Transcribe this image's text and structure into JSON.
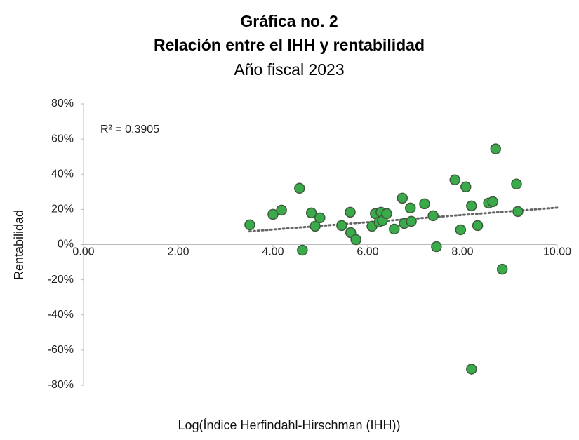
{
  "chart_data": {
    "type": "scatter",
    "title": "Gráfica no. 2",
    "title_line2": "Relación entre el IHH y rentabilidad",
    "subtitle": "Año fiscal 2023",
    "x_label": "Log(Índice Herfindahl-Hirschman (IHH))",
    "y_label": "Rentabilidad",
    "annotation": "R² = 0.3905",
    "color": "#3aaa4a",
    "x": [
      3.51,
      4.0,
      4.18,
      4.56,
      4.62,
      4.81,
      4.89,
      4.99,
      5.45,
      5.63,
      5.64,
      5.75,
      6.09,
      6.16,
      6.24,
      6.28,
      6.31,
      6.4,
      6.56,
      6.73,
      6.77,
      6.9,
      6.92,
      7.2,
      7.38,
      7.45,
      7.84,
      7.96,
      8.07,
      8.19,
      8.19,
      8.32,
      8.55,
      8.64,
      8.7,
      8.84,
      9.14,
      9.17
    ],
    "values": [
      11.2,
      17.2,
      19.6,
      32,
      -3.2,
      18,
      10.4,
      15.2,
      10.8,
      18.4,
      6.8,
      2.8,
      10.4,
      17.6,
      12.8,
      18.4,
      13.6,
      17.6,
      8.8,
      26.4,
      12,
      20.8,
      13.2,
      23.2,
      16.4,
      -1.2,
      36.8,
      8.4,
      32.8,
      22,
      -70.8,
      10.8,
      23.6,
      24.4,
      54.4,
      -14,
      34.4,
      18.8
    ],
    "trendline": {
      "x": [
        3.5,
        10
      ],
      "y": [
        7.5,
        21
      ]
    },
    "xlim": [
      0,
      10
    ],
    "ylim": [
      -80,
      80
    ],
    "xticks": [
      {
        "value": 0,
        "label": "0.00"
      },
      {
        "value": 2,
        "label": "2.00"
      },
      {
        "value": 4,
        "label": "4.00"
      },
      {
        "value": 6,
        "label": "6.00"
      },
      {
        "value": 8,
        "label": "8.00"
      },
      {
        "value": 10,
        "label": "10.00"
      }
    ],
    "yticks": [
      {
        "value": 80,
        "label": "80%"
      },
      {
        "value": 60,
        "label": "60%"
      },
      {
        "value": 40,
        "label": "40%"
      },
      {
        "value": 20,
        "label": "20%"
      },
      {
        "value": 0,
        "label": "0%"
      },
      {
        "value": -20,
        "label": "-20%"
      },
      {
        "value": -40,
        "label": "-40%"
      },
      {
        "value": -60,
        "label": "-60%"
      },
      {
        "value": -80,
        "label": "-80%"
      }
    ]
  }
}
